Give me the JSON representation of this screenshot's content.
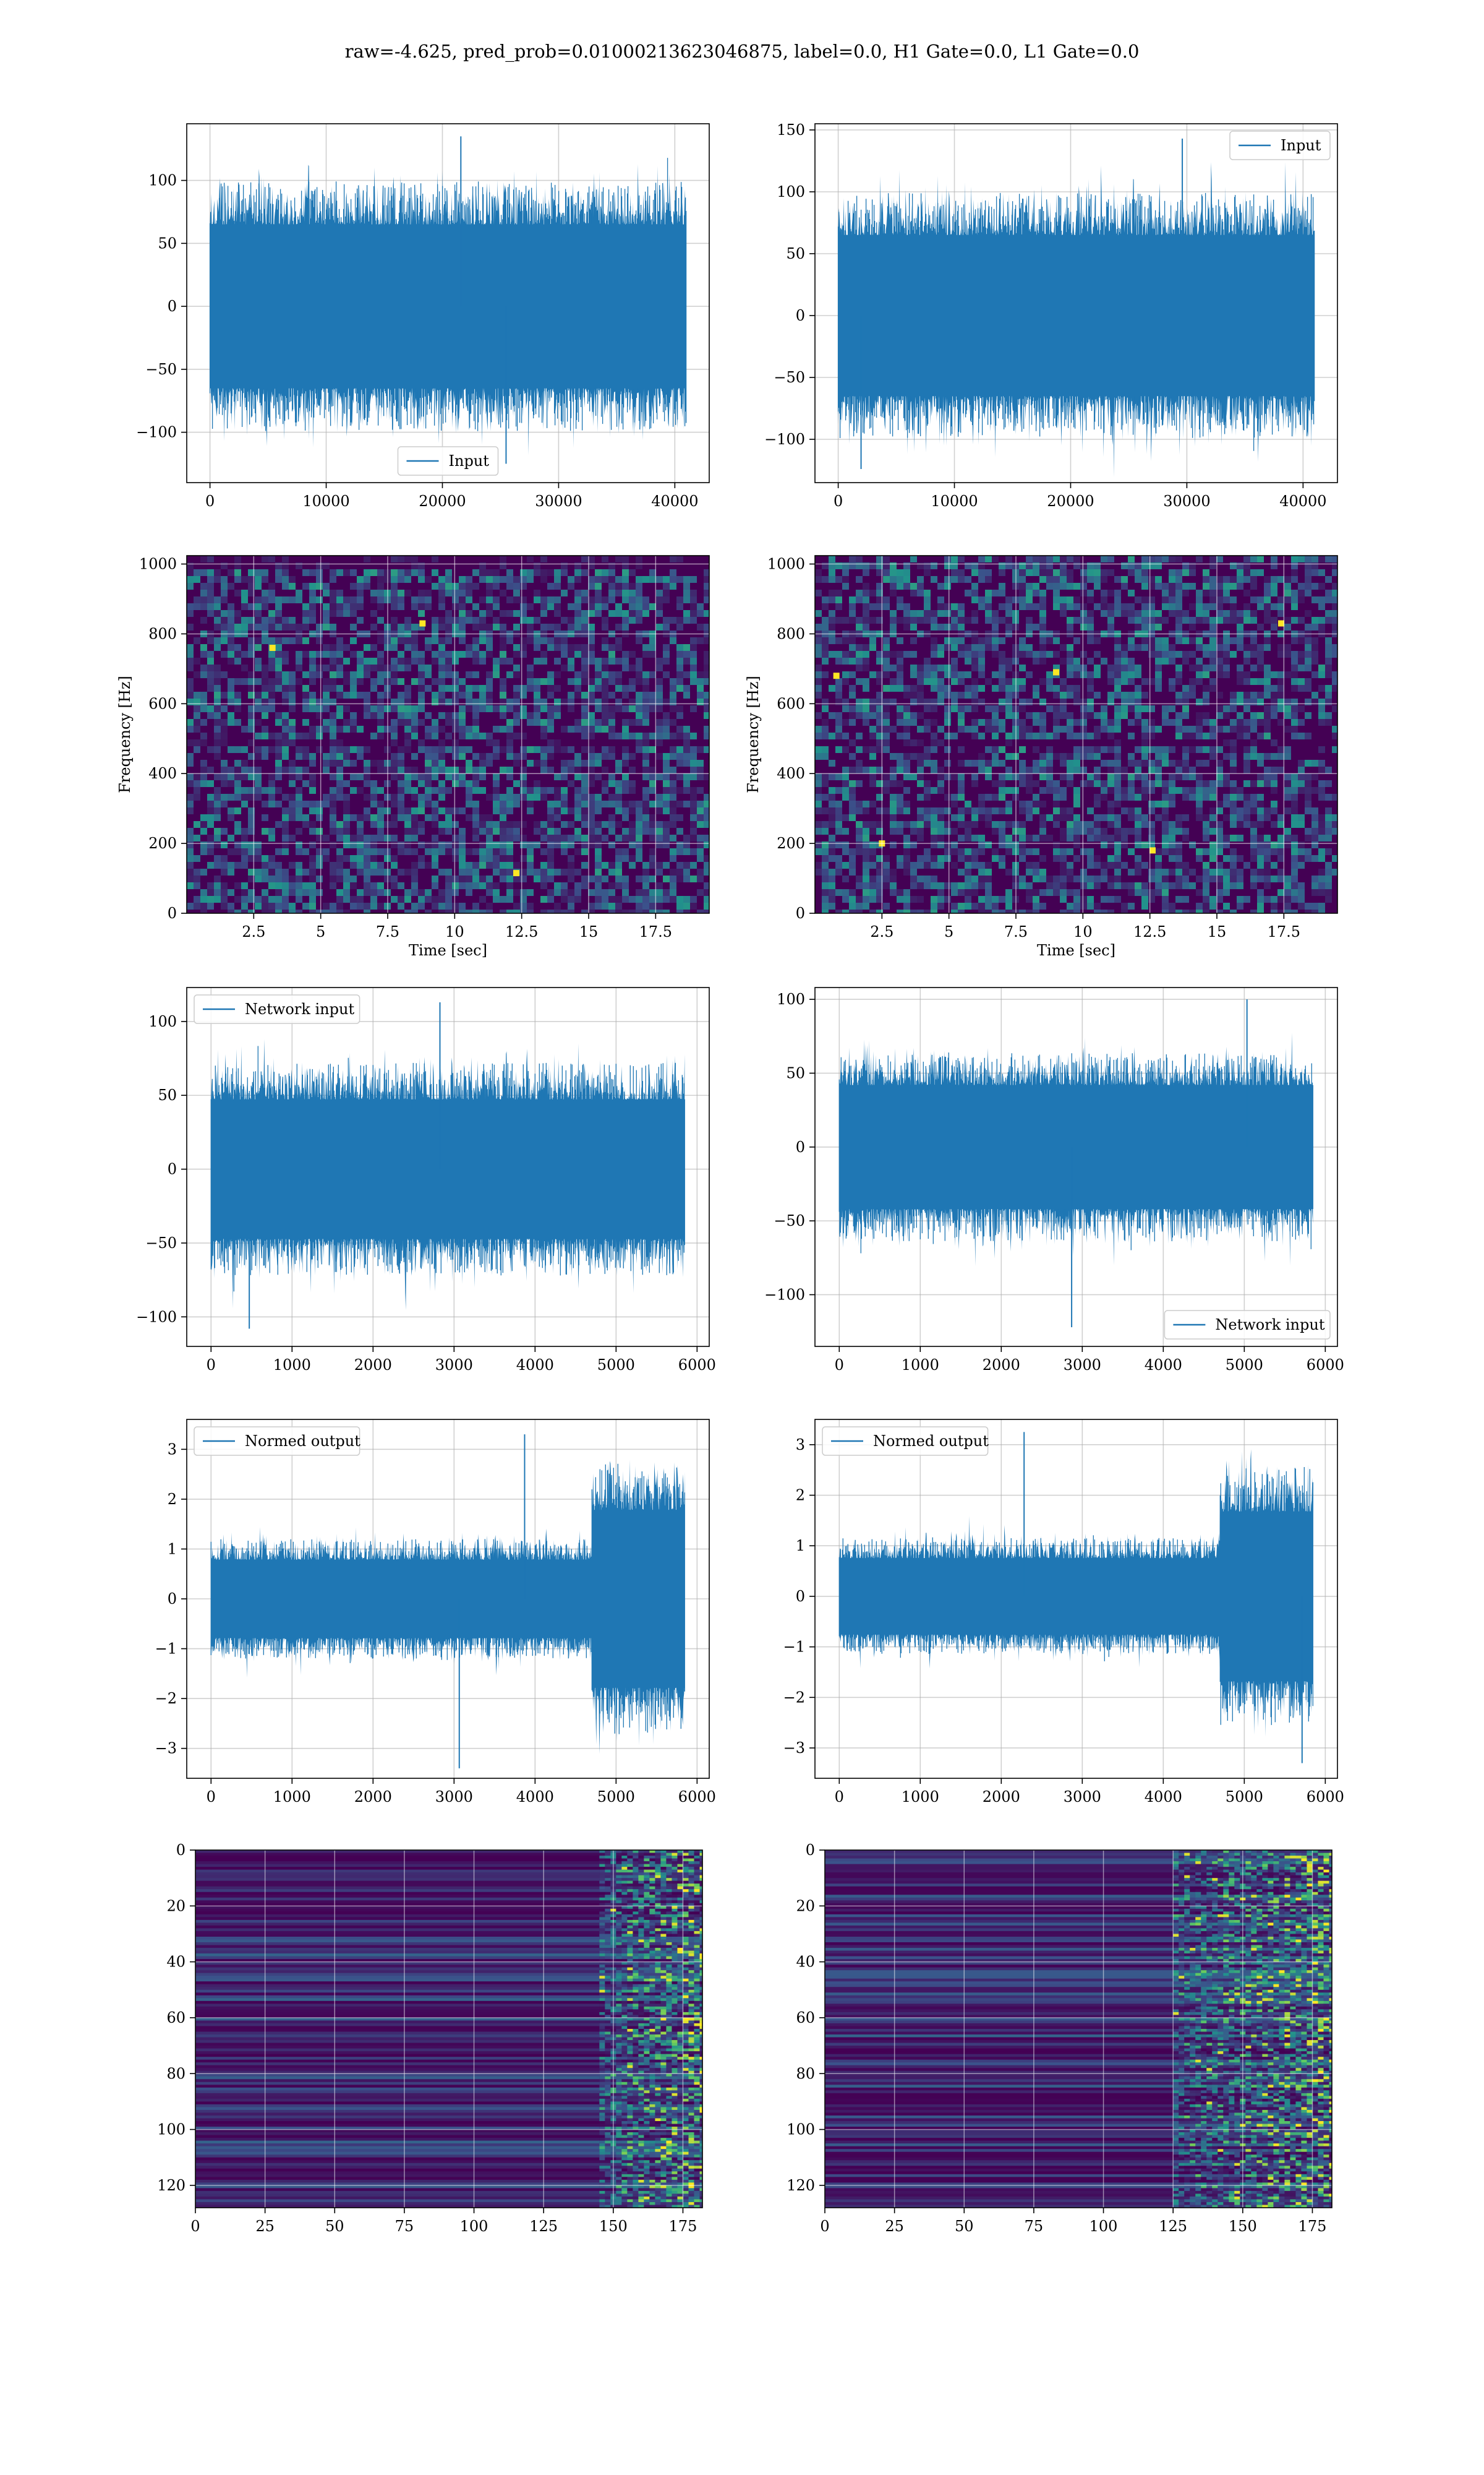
{
  "figure": {
    "title": "raw=-4.625, pred_prob=0.01000213623046875, label=0.0, H1 Gate=0.0, L1 Gate=0.0"
  },
  "colors": {
    "line": "#1f77b4",
    "grid": "#b0b0b0",
    "axes_edge": "#000000",
    "viridis_dark": "#440154",
    "viridis_mid": "#3b528b",
    "viridis_teal": "#21918c",
    "viridis_green": "#5ec962",
    "viridis_yellow": "#fde725"
  },
  "chart_data": [
    {
      "id": "input-h1",
      "type": "line",
      "x_range": [
        0,
        40960
      ],
      "xlim": [
        -2000,
        42960
      ],
      "ylim": [
        -140,
        145
      ],
      "xticks": [
        0,
        10000,
        20000,
        30000,
        40000
      ],
      "yticks": [
        -100,
        -50,
        0,
        50,
        100
      ],
      "grid": true,
      "legend": "lower center",
      "series": [
        {
          "name": "Input",
          "band": 62,
          "peak_max": 135,
          "peak_min": -125,
          "color": "#1f77b4"
        }
      ]
    },
    {
      "id": "input-l1",
      "type": "line",
      "x_range": [
        0,
        40960
      ],
      "xlim": [
        -2000,
        42960
      ],
      "ylim": [
        -135,
        155
      ],
      "xticks": [
        0,
        10000,
        20000,
        30000,
        40000
      ],
      "yticks": [
        -100,
        -50,
        0,
        50,
        100,
        150
      ],
      "grid": true,
      "legend": "upper right",
      "series": [
        {
          "name": "Input",
          "band": 62,
          "peak_max": 143,
          "peak_min": -124,
          "color": "#1f77b4"
        }
      ]
    },
    {
      "id": "spectrogram-h1",
      "type": "heatmap",
      "xlim": [
        0,
        19.5
      ],
      "ylim": [
        0,
        1024
      ],
      "xticks": [
        2.5,
        5.0,
        7.5,
        10.0,
        12.5,
        15.0,
        17.5
      ],
      "yticks": [
        0,
        200,
        400,
        600,
        800,
        1000
      ],
      "xlabel": "Time [sec]",
      "ylabel": "Frequency [Hz]",
      "grid": true,
      "colormap": "viridis",
      "dark_bands_hz": [
        500,
        1010
      ],
      "bright_spots": [
        [
          8.8,
          830
        ],
        [
          12.3,
          115
        ],
        [
          3.2,
          760
        ]
      ]
    },
    {
      "id": "spectrogram-l1",
      "type": "heatmap",
      "xlim": [
        0,
        19.5
      ],
      "ylim": [
        0,
        1024
      ],
      "xticks": [
        2.5,
        5.0,
        7.5,
        10.0,
        12.5,
        15.0,
        17.5
      ],
      "yticks": [
        0,
        200,
        400,
        600,
        800,
        1000
      ],
      "xlabel": "Time [sec]",
      "ylabel": "Frequency [Hz]",
      "grid": true,
      "colormap": "viridis",
      "dark_bands_hz": [
        500
      ],
      "bright_spots": [
        [
          0.8,
          680
        ],
        [
          2.5,
          200
        ],
        [
          9.0,
          690
        ],
        [
          17.4,
          830
        ],
        [
          12.6,
          180
        ]
      ]
    },
    {
      "id": "network-input-h1",
      "type": "line",
      "x_range": [
        0,
        5850
      ],
      "xlim": [
        -300,
        6150
      ],
      "ylim": [
        -120,
        123
      ],
      "xticks": [
        0,
        1000,
        2000,
        3000,
        4000,
        5000,
        6000
      ],
      "yticks": [
        -100,
        -50,
        0,
        50,
        100
      ],
      "grid": true,
      "legend": "upper left",
      "series": [
        {
          "name": "Network input",
          "band": 45,
          "peak_max": 113,
          "peak_min": -108,
          "color": "#1f77b4"
        }
      ]
    },
    {
      "id": "network-input-l1",
      "type": "line",
      "x_range": [
        0,
        5850
      ],
      "xlim": [
        -300,
        6150
      ],
      "ylim": [
        -135,
        108
      ],
      "xticks": [
        0,
        1000,
        2000,
        3000,
        4000,
        5000,
        6000
      ],
      "yticks": [
        -100,
        -50,
        0,
        50,
        100
      ],
      "grid": true,
      "legend": "lower right",
      "series": [
        {
          "name": "Network input",
          "band": 40,
          "peak_max": 100,
          "peak_min": -122,
          "color": "#1f77b4"
        }
      ]
    },
    {
      "id": "normed-output-h1",
      "type": "line",
      "x_range": [
        0,
        5850
      ],
      "xlim": [
        -300,
        6150
      ],
      "ylim": [
        -3.6,
        3.6
      ],
      "xticks": [
        0,
        1000,
        2000,
        3000,
        4000,
        5000,
        6000
      ],
      "yticks": [
        -3,
        -2,
        -1,
        0,
        1,
        2,
        3
      ],
      "grid": true,
      "legend": "upper left",
      "burst_start": 4700,
      "series": [
        {
          "name": "Normed output",
          "band": 0.75,
          "burst_band": 1.7,
          "peak_max": 3.3,
          "peak_min": -3.4,
          "color": "#1f77b4"
        }
      ]
    },
    {
      "id": "normed-output-l1",
      "type": "line",
      "x_range": [
        0,
        5850
      ],
      "xlim": [
        -300,
        6150
      ],
      "ylim": [
        -3.6,
        3.5
      ],
      "xticks": [
        0,
        1000,
        2000,
        3000,
        4000,
        5000,
        6000
      ],
      "yticks": [
        -3,
        -2,
        -1,
        0,
        1,
        2,
        3
      ],
      "grid": true,
      "legend": "upper left",
      "burst_start": 4700,
      "series": [
        {
          "name": "Normed output",
          "band": 0.72,
          "burst_band": 1.6,
          "peak_max": 3.25,
          "peak_min": -3.3,
          "color": "#1f77b4"
        }
      ]
    },
    {
      "id": "feature-map-h1",
      "type": "heatmap",
      "xlim": [
        0,
        182
      ],
      "ylim": [
        128,
        0
      ],
      "xticks": [
        0,
        25,
        50,
        75,
        100,
        125,
        150,
        175
      ],
      "yticks": [
        0,
        20,
        40,
        60,
        80,
        100,
        120
      ],
      "grid": true,
      "colormap": "viridis",
      "active_from": 145
    },
    {
      "id": "feature-map-l1",
      "type": "heatmap",
      "xlim": [
        0,
        182
      ],
      "ylim": [
        128,
        0
      ],
      "xticks": [
        0,
        25,
        50,
        75,
        100,
        125,
        150,
        175
      ],
      "yticks": [
        0,
        20,
        40,
        60,
        80,
        100,
        120
      ],
      "grid": true,
      "colormap": "viridis",
      "active_from": 125
    }
  ]
}
